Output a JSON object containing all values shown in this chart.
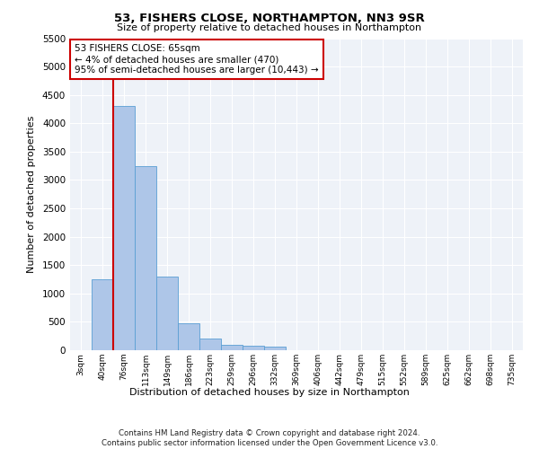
{
  "title1": "53, FISHERS CLOSE, NORTHAMPTON, NN3 9SR",
  "title2": "Size of property relative to detached houses in Northampton",
  "xlabel": "Distribution of detached houses by size in Northampton",
  "ylabel": "Number of detached properties",
  "categories": [
    "3sqm",
    "40sqm",
    "76sqm",
    "113sqm",
    "149sqm",
    "186sqm",
    "223sqm",
    "259sqm",
    "296sqm",
    "332sqm",
    "369sqm",
    "406sqm",
    "442sqm",
    "479sqm",
    "515sqm",
    "552sqm",
    "589sqm",
    "625sqm",
    "662sqm",
    "698sqm",
    "735sqm"
  ],
  "values": [
    0,
    1250,
    4300,
    3250,
    1300,
    480,
    200,
    100,
    80,
    60,
    0,
    0,
    0,
    0,
    0,
    0,
    0,
    0,
    0,
    0,
    0
  ],
  "bar_color": "#aec6e8",
  "bar_edge_color": "#5a9fd4",
  "vline_color": "#cc0000",
  "annotation_text": "53 FISHERS CLOSE: 65sqm\n← 4% of detached houses are smaller (470)\n95% of semi-detached houses are larger (10,443) →",
  "annotation_box_color": "#ffffff",
  "annotation_box_edge": "#cc0000",
  "ylim": [
    0,
    5500
  ],
  "yticks": [
    0,
    500,
    1000,
    1500,
    2000,
    2500,
    3000,
    3500,
    4000,
    4500,
    5000,
    5500
  ],
  "footnote": "Contains HM Land Registry data © Crown copyright and database right 2024.\nContains public sector information licensed under the Open Government Licence v3.0.",
  "bg_color": "#eef2f8",
  "fig_bg": "#ffffff",
  "grid_color": "#ffffff"
}
